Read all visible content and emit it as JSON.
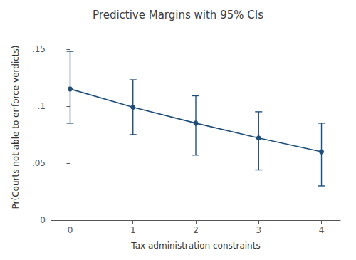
{
  "chart_data": {
    "type": "line",
    "title": "Predictive Margins with 95% CIs",
    "xlabel": "Tax administration constraints",
    "ylabel": "Pr(Courts not able to enforce verdicts)",
    "x": [
      0,
      1,
      2,
      3,
      4
    ],
    "values": [
      0.115,
      0.099,
      0.085,
      0.072,
      0.06
    ],
    "ci_lower": [
      0.085,
      0.075,
      0.057,
      0.044,
      0.03
    ],
    "ci_upper": [
      0.148,
      0.123,
      0.109,
      0.095,
      0.085
    ],
    "xlim": [
      -0.3,
      4.3
    ],
    "ylim": [
      0,
      0.163
    ],
    "xticks": [
      0,
      1,
      2,
      3,
      4
    ],
    "yticks": [
      0,
      {
        "value": 0.05,
        "label": ".05"
      },
      {
        "value": 0.1,
        "label": ".1"
      },
      {
        "value": 0.15,
        "label": ".15"
      }
    ],
    "color": "#1F4E79",
    "marker": "circle",
    "grid": false
  }
}
